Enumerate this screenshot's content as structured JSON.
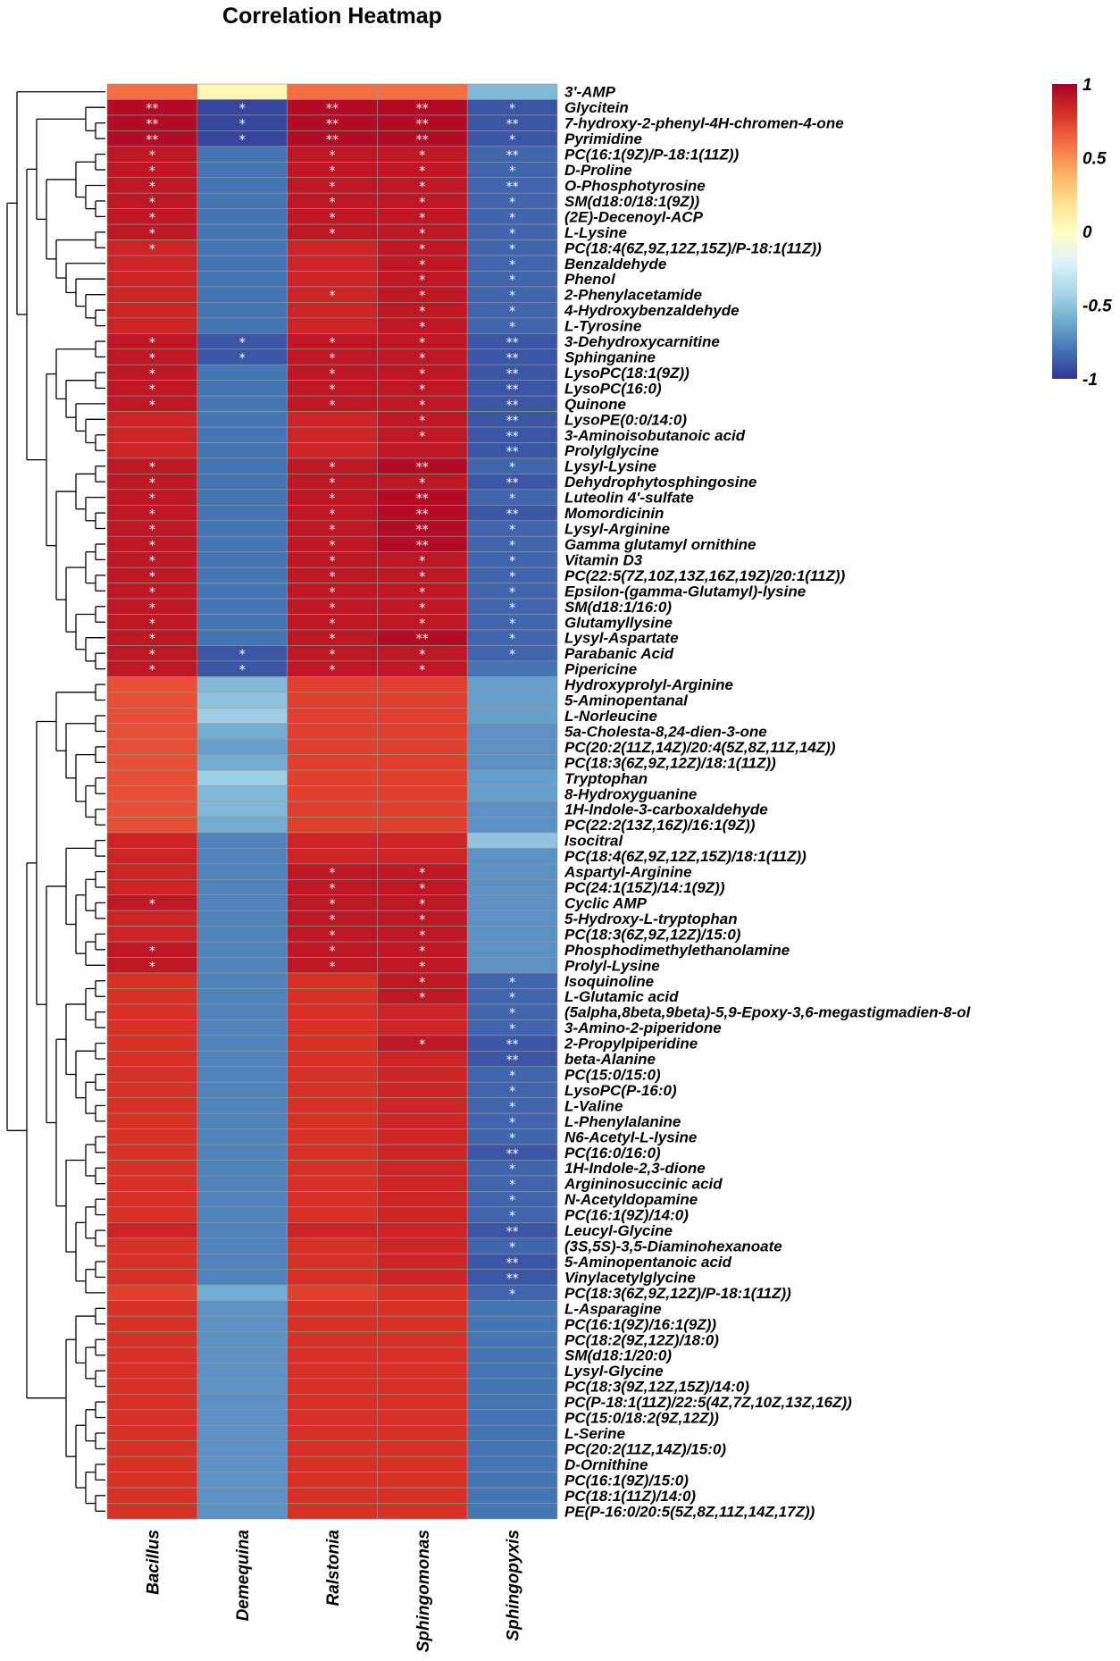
{
  "chart_data": {
    "type": "heatmap",
    "title": "Correlation Heatmap",
    "columns": [
      "Bacillus",
      "Demequina",
      "Ralstonia",
      "Sphingomonas",
      "Sphingopyxis"
    ],
    "rows": [
      "3'-AMP",
      "Glycitein",
      "7-hydroxy-2-phenyl-4H-chromen-4-one",
      "Pyrimidine",
      "PC(16:1(9Z)/P-18:1(11Z))",
      "D-Proline",
      "O-Phosphotyrosine",
      "SM(d18:0/18:1(9Z))",
      "(2E)-Decenoyl-ACP",
      "L-Lysine",
      "PC(18:4(6Z,9Z,12Z,15Z)/P-18:1(11Z))",
      "Benzaldehyde",
      "Phenol",
      "2-Phenylacetamide",
      "4-Hydroxybenzaldehyde",
      "L-Tyrosine",
      "3-Dehydroxycarnitine",
      "Sphinganine",
      "LysoPC(18:1(9Z))",
      "LysoPC(16:0)",
      "Quinone",
      "LysoPE(0:0/14:0)",
      "3-Aminoisobutanoic acid",
      "Prolylglycine",
      "Lysyl-Lysine",
      "Dehydrophytosphingosine",
      "Luteolin 4'-sulfate",
      "Momordicinin",
      "Lysyl-Arginine",
      "Gamma glutamyl ornithine",
      "Vitamin D3",
      "PC(22:5(7Z,10Z,13Z,16Z,19Z)/20:1(11Z))",
      "Epsilon-(gamma-Glutamyl)-lysine",
      "SM(d18:1/16:0)",
      "Glutamyllysine",
      "Lysyl-Aspartate",
      "Parabanic Acid",
      "Pipericine",
      "Hydroxyprolyl-Arginine",
      "5-Aminopentanal",
      "L-Norleucine",
      "5a-Cholesta-8,24-dien-3-one",
      "PC(20:2(11Z,14Z)/20:4(5Z,8Z,11Z,14Z))",
      "PC(18:3(6Z,9Z,12Z)/18:1(11Z))",
      "Tryptophan",
      "8-Hydroxyguanine",
      "1H-Indole-3-carboxaldehyde",
      "PC(22:2(13Z,16Z)/16:1(9Z))",
      "Isocitral",
      "PC(18:4(6Z,9Z,12Z,15Z)/18:1(11Z))",
      "Aspartyl-Arginine",
      "PC(24:1(15Z)/14:1(9Z))",
      "Cyclic AMP",
      "5-Hydroxy-L-tryptophan",
      "PC(18:3(6Z,9Z,12Z)/15:0)",
      "Phosphodimethylethanolamine",
      "Prolyl-Lysine",
      "Isoquinoline",
      "L-Glutamic acid",
      "(5alpha,8beta,9beta)-5,9-Epoxy-3,6-megastigmadien-8-ol",
      "3-Amino-2-piperidone",
      "2-Propylpiperidine",
      "beta-Alanine",
      "PC(15:0/15:0)",
      "LysoPC(P-16:0)",
      "L-Valine",
      "L-Phenylalanine",
      "N6-Acetyl-L-lysine",
      "PC(16:0/16:0)",
      "1H-Indole-2,3-dione",
      "Argininosuccinic acid",
      "N-Acetyldopamine",
      "PC(16:1(9Z)/14:0)",
      "Leucyl-Glycine",
      "(3S,5S)-3,5-Diaminohexanoate",
      "5-Aminopentanoic acid",
      "Vinylacetylglycine",
      "PC(18:3(6Z,9Z,12Z)/P-18:1(11Z))",
      "L-Asparagine",
      "PC(16:1(9Z)/16:1(9Z))",
      "PC(18:2(9Z,12Z)/18:0)",
      "SM(d18:1/20:0)",
      "Lysyl-Glycine",
      "PC(18:3(9Z,12Z,15Z)/14:0)",
      "PC(P-18:1(11Z)/22:5(4Z,7Z,10Z,13Z,16Z))",
      "PC(15:0/18:2(9Z,12Z))",
      "L-Serine",
      "PC(20:2(11Z,14Z)/15:0)",
      "D-Ornithine",
      "PC(16:1(9Z)/15:0)",
      "PC(18:1(11Z)/14:0)",
      "PE(P-16:0/20:5(5Z,8Z,11Z,14Z,17Z))"
    ],
    "values": [
      [
        0.6,
        0.05,
        0.6,
        0.6,
        -0.55
      ],
      [
        0.95,
        -0.95,
        0.95,
        0.95,
        -0.9
      ],
      [
        0.95,
        -0.95,
        0.95,
        0.95,
        -0.9
      ],
      [
        0.95,
        -0.95,
        0.95,
        0.95,
        -0.9
      ],
      [
        0.9,
        -0.8,
        0.9,
        0.9,
        -0.85
      ],
      [
        0.9,
        -0.8,
        0.9,
        0.9,
        -0.85
      ],
      [
        0.9,
        -0.8,
        0.9,
        0.9,
        -0.85
      ],
      [
        0.9,
        -0.8,
        0.9,
        0.9,
        -0.85
      ],
      [
        0.9,
        -0.8,
        0.9,
        0.9,
        -0.85
      ],
      [
        0.9,
        -0.8,
        0.9,
        0.9,
        -0.85
      ],
      [
        0.85,
        -0.8,
        0.85,
        0.9,
        -0.85
      ],
      [
        0.85,
        -0.8,
        0.85,
        0.9,
        -0.85
      ],
      [
        0.85,
        -0.8,
        0.85,
        0.9,
        -0.85
      ],
      [
        0.85,
        -0.8,
        0.85,
        0.9,
        -0.85
      ],
      [
        0.85,
        -0.8,
        0.85,
        0.9,
        -0.85
      ],
      [
        0.85,
        -0.8,
        0.85,
        0.9,
        -0.85
      ],
      [
        0.9,
        -0.9,
        0.9,
        0.9,
        -0.9
      ],
      [
        0.9,
        -0.9,
        0.9,
        0.9,
        -0.9
      ],
      [
        0.9,
        -0.8,
        0.9,
        0.9,
        -0.9
      ],
      [
        0.9,
        -0.8,
        0.9,
        0.9,
        -0.9
      ],
      [
        0.9,
        -0.8,
        0.9,
        0.9,
        -0.9
      ],
      [
        0.85,
        -0.8,
        0.85,
        0.9,
        -0.9
      ],
      [
        0.85,
        -0.8,
        0.85,
        0.9,
        -0.9
      ],
      [
        0.85,
        -0.8,
        0.85,
        0.9,
        -0.9
      ],
      [
        0.9,
        -0.8,
        0.9,
        0.95,
        -0.85
      ],
      [
        0.9,
        -0.8,
        0.9,
        0.9,
        -0.9
      ],
      [
        0.9,
        -0.8,
        0.9,
        0.95,
        -0.85
      ],
      [
        0.9,
        -0.8,
        0.9,
        0.95,
        -0.9
      ],
      [
        0.9,
        -0.8,
        0.9,
        0.95,
        -0.85
      ],
      [
        0.9,
        -0.8,
        0.9,
        0.95,
        -0.85
      ],
      [
        0.9,
        -0.8,
        0.9,
        0.9,
        -0.85
      ],
      [
        0.9,
        -0.8,
        0.9,
        0.9,
        -0.85
      ],
      [
        0.9,
        -0.8,
        0.9,
        0.9,
        -0.85
      ],
      [
        0.9,
        -0.8,
        0.9,
        0.9,
        -0.85
      ],
      [
        0.9,
        -0.8,
        0.9,
        0.9,
        -0.85
      ],
      [
        0.9,
        -0.8,
        0.9,
        0.95,
        -0.85
      ],
      [
        0.9,
        -0.9,
        0.9,
        0.9,
        -0.85
      ],
      [
        0.9,
        -0.9,
        0.9,
        0.9,
        -0.8
      ],
      [
        0.7,
        -0.55,
        0.75,
        0.75,
        -0.65
      ],
      [
        0.7,
        -0.5,
        0.75,
        0.75,
        -0.65
      ],
      [
        0.7,
        -0.45,
        0.75,
        0.75,
        -0.65
      ],
      [
        0.7,
        -0.6,
        0.75,
        0.75,
        -0.7
      ],
      [
        0.7,
        -0.65,
        0.75,
        0.75,
        -0.7
      ],
      [
        0.7,
        -0.6,
        0.75,
        0.75,
        -0.7
      ],
      [
        0.7,
        -0.45,
        0.75,
        0.75,
        -0.65
      ],
      [
        0.7,
        -0.55,
        0.75,
        0.75,
        -0.65
      ],
      [
        0.7,
        -0.55,
        0.75,
        0.75,
        -0.7
      ],
      [
        0.7,
        -0.6,
        0.75,
        0.75,
        -0.7
      ],
      [
        0.85,
        -0.75,
        0.85,
        0.85,
        -0.5
      ],
      [
        0.85,
        -0.75,
        0.85,
        0.85,
        -0.7
      ],
      [
        0.85,
        -0.75,
        0.9,
        0.9,
        -0.7
      ],
      [
        0.85,
        -0.75,
        0.9,
        0.9,
        -0.7
      ],
      [
        0.9,
        -0.75,
        0.9,
        0.9,
        -0.7
      ],
      [
        0.85,
        -0.75,
        0.9,
        0.9,
        -0.7
      ],
      [
        0.85,
        -0.75,
        0.9,
        0.9,
        -0.7
      ],
      [
        0.9,
        -0.75,
        0.9,
        0.9,
        -0.7
      ],
      [
        0.9,
        -0.75,
        0.9,
        0.9,
        -0.7
      ],
      [
        0.8,
        -0.75,
        0.8,
        0.9,
        -0.85
      ],
      [
        0.8,
        -0.75,
        0.8,
        0.9,
        -0.85
      ],
      [
        0.8,
        -0.75,
        0.8,
        0.85,
        -0.85
      ],
      [
        0.8,
        -0.75,
        0.8,
        0.85,
        -0.85
      ],
      [
        0.8,
        -0.75,
        0.8,
        0.9,
        -0.9
      ],
      [
        0.8,
        -0.75,
        0.8,
        0.85,
        -0.9
      ],
      [
        0.8,
        -0.75,
        0.8,
        0.85,
        -0.85
      ],
      [
        0.8,
        -0.75,
        0.8,
        0.85,
        -0.85
      ],
      [
        0.8,
        -0.75,
        0.8,
        0.85,
        -0.85
      ],
      [
        0.8,
        -0.75,
        0.8,
        0.85,
        -0.85
      ],
      [
        0.8,
        -0.75,
        0.8,
        0.85,
        -0.85
      ],
      [
        0.8,
        -0.75,
        0.8,
        0.85,
        -0.9
      ],
      [
        0.8,
        -0.75,
        0.8,
        0.85,
        -0.85
      ],
      [
        0.8,
        -0.75,
        0.8,
        0.85,
        -0.85
      ],
      [
        0.8,
        -0.75,
        0.8,
        0.85,
        -0.85
      ],
      [
        0.8,
        -0.75,
        0.8,
        0.85,
        -0.85
      ],
      [
        0.85,
        -0.75,
        0.85,
        0.85,
        -0.9
      ],
      [
        0.8,
        -0.75,
        0.8,
        0.85,
        -0.85
      ],
      [
        0.8,
        -0.75,
        0.8,
        0.85,
        -0.9
      ],
      [
        0.8,
        -0.75,
        0.8,
        0.85,
        -0.9
      ],
      [
        0.75,
        -0.6,
        0.75,
        0.8,
        -0.85
      ],
      [
        0.8,
        -0.7,
        0.8,
        0.8,
        -0.8
      ],
      [
        0.8,
        -0.7,
        0.8,
        0.8,
        -0.8
      ],
      [
        0.8,
        -0.7,
        0.8,
        0.8,
        -0.8
      ],
      [
        0.8,
        -0.7,
        0.8,
        0.8,
        -0.8
      ],
      [
        0.8,
        -0.7,
        0.8,
        0.8,
        -0.8
      ],
      [
        0.8,
        -0.7,
        0.8,
        0.8,
        -0.8
      ],
      [
        0.8,
        -0.7,
        0.8,
        0.8,
        -0.8
      ],
      [
        0.8,
        -0.7,
        0.8,
        0.8,
        -0.8
      ],
      [
        0.8,
        -0.7,
        0.8,
        0.8,
        -0.8
      ],
      [
        0.8,
        -0.7,
        0.8,
        0.8,
        -0.8
      ],
      [
        0.8,
        -0.7,
        0.8,
        0.8,
        -0.8
      ],
      [
        0.8,
        -0.7,
        0.8,
        0.8,
        -0.8
      ],
      [
        0.8,
        -0.7,
        0.8,
        0.8,
        -0.8
      ],
      [
        0.8,
        -0.7,
        0.8,
        0.8,
        -0.8
      ]
    ],
    "significance": [
      [
        "",
        "",
        "",
        "",
        ""
      ],
      [
        "**",
        "*",
        "**",
        "**",
        "*"
      ],
      [
        "**",
        "*",
        "**",
        "**",
        "**"
      ],
      [
        "**",
        "*",
        "**",
        "**",
        "*"
      ],
      [
        "*",
        "",
        "*",
        "*",
        "**"
      ],
      [
        "*",
        "",
        "*",
        "*",
        "*"
      ],
      [
        "*",
        "",
        "*",
        "*",
        "**"
      ],
      [
        "*",
        "",
        "*",
        "*",
        "*"
      ],
      [
        "*",
        "",
        "*",
        "*",
        "*"
      ],
      [
        "*",
        "",
        "*",
        "*",
        "*"
      ],
      [
        "*",
        "",
        "",
        "*",
        "*"
      ],
      [
        "",
        "",
        "",
        "*",
        "*"
      ],
      [
        "",
        "",
        "",
        "*",
        "*"
      ],
      [
        "",
        "",
        "*",
        "*",
        "*"
      ],
      [
        "",
        "",
        "",
        "*",
        "*"
      ],
      [
        "",
        "",
        "",
        "*",
        "*"
      ],
      [
        "*",
        "*",
        "*",
        "*",
        "**"
      ],
      [
        "*",
        "*",
        "*",
        "*",
        "**"
      ],
      [
        "*",
        "",
        "*",
        "*",
        "**"
      ],
      [
        "*",
        "",
        "*",
        "*",
        "**"
      ],
      [
        "*",
        "",
        "*",
        "*",
        "**"
      ],
      [
        "",
        "",
        "",
        "*",
        "**"
      ],
      [
        "",
        "",
        "",
        "*",
        "**"
      ],
      [
        "",
        "",
        "",
        "",
        "**"
      ],
      [
        "*",
        "",
        "*",
        "**",
        "*"
      ],
      [
        "*",
        "",
        "*",
        "*",
        "**"
      ],
      [
        "*",
        "",
        "*",
        "**",
        "*"
      ],
      [
        "*",
        "",
        "*",
        "**",
        "**"
      ],
      [
        "*",
        "",
        "*",
        "**",
        "*"
      ],
      [
        "*",
        "",
        "*",
        "**",
        "*"
      ],
      [
        "*",
        "",
        "*",
        "*",
        "*"
      ],
      [
        "*",
        "",
        "*",
        "*",
        "*"
      ],
      [
        "*",
        "",
        "*",
        "*",
        "*"
      ],
      [
        "*",
        "",
        "*",
        "*",
        "*"
      ],
      [
        "*",
        "",
        "*",
        "*",
        "*"
      ],
      [
        "*",
        "",
        "*",
        "**",
        "*"
      ],
      [
        "*",
        "*",
        "*",
        "*",
        "*"
      ],
      [
        "*",
        "*",
        "*",
        "*",
        ""
      ],
      [
        "",
        "",
        "",
        "",
        ""
      ],
      [
        "",
        "",
        "",
        "",
        ""
      ],
      [
        "",
        "",
        "",
        "",
        ""
      ],
      [
        "",
        "",
        "",
        "",
        ""
      ],
      [
        "",
        "",
        "",
        "",
        ""
      ],
      [
        "",
        "",
        "",
        "",
        ""
      ],
      [
        "",
        "",
        "",
        "",
        ""
      ],
      [
        "",
        "",
        "",
        "",
        ""
      ],
      [
        "",
        "",
        "",
        "",
        ""
      ],
      [
        "",
        "",
        "",
        "",
        ""
      ],
      [
        "",
        "",
        "",
        "",
        ""
      ],
      [
        "",
        "",
        "",
        "",
        ""
      ],
      [
        "",
        "",
        "*",
        "*",
        ""
      ],
      [
        "",
        "",
        "*",
        "*",
        ""
      ],
      [
        "*",
        "",
        "*",
        "*",
        ""
      ],
      [
        "",
        "",
        "*",
        "*",
        ""
      ],
      [
        "",
        "",
        "*",
        "*",
        ""
      ],
      [
        "*",
        "",
        "*",
        "*",
        ""
      ],
      [
        "*",
        "",
        "*",
        "*",
        ""
      ],
      [
        "",
        "",
        "",
        "*",
        "*"
      ],
      [
        "",
        "",
        "",
        "*",
        "*"
      ],
      [
        "",
        "",
        "",
        "",
        "*"
      ],
      [
        "",
        "",
        "",
        "",
        "*"
      ],
      [
        "",
        "",
        "",
        "*",
        "**"
      ],
      [
        "",
        "",
        "",
        "",
        "**"
      ],
      [
        "",
        "",
        "",
        "",
        "*"
      ],
      [
        "",
        "",
        "",
        "",
        "*"
      ],
      [
        "",
        "",
        "",
        "",
        "*"
      ],
      [
        "",
        "",
        "",
        "",
        "*"
      ],
      [
        "",
        "",
        "",
        "",
        "*"
      ],
      [
        "",
        "",
        "",
        "",
        "**"
      ],
      [
        "",
        "",
        "",
        "",
        "*"
      ],
      [
        "",
        "",
        "",
        "",
        "*"
      ],
      [
        "",
        "",
        "",
        "",
        "*"
      ],
      [
        "",
        "",
        "",
        "",
        "*"
      ],
      [
        "",
        "",
        "",
        "",
        "**"
      ],
      [
        "",
        "",
        "",
        "",
        "*"
      ],
      [
        "",
        "",
        "",
        "",
        "**"
      ],
      [
        "",
        "",
        "",
        "",
        "**"
      ],
      [
        "",
        "",
        "",
        "",
        "*"
      ],
      [
        "",
        "",
        "",
        "",
        ""
      ],
      [
        "",
        "",
        "",
        "",
        ""
      ],
      [
        "",
        "",
        "",
        "",
        ""
      ],
      [
        "",
        "",
        "",
        "",
        ""
      ],
      [
        "",
        "",
        "",
        "",
        ""
      ],
      [
        "",
        "",
        "",
        "",
        ""
      ],
      [
        "",
        "",
        "",
        "",
        ""
      ],
      [
        "",
        "",
        "",
        "",
        ""
      ],
      [
        "",
        "",
        "",
        "",
        ""
      ],
      [
        "",
        "",
        "",
        "",
        ""
      ],
      [
        "",
        "",
        "",
        "",
        ""
      ],
      [
        "",
        "",
        "",
        "",
        ""
      ],
      [
        "",
        "",
        "",
        "",
        ""
      ],
      [
        "",
        "",
        "",
        "",
        ""
      ]
    ],
    "color_scale": {
      "range": [
        -1,
        1
      ],
      "ticks": [
        "1",
        "0.5",
        "0",
        "-0.5",
        "-1"
      ],
      "colors": [
        "#313695",
        "#4575b4",
        "#74add1",
        "#abd9e9",
        "#e0f3f8",
        "#ffffbf",
        "#fee090",
        "#fdae61",
        "#f46d43",
        "#d73027",
        "#a50026"
      ]
    },
    "row_dendrogram": true,
    "legend": "right"
  }
}
